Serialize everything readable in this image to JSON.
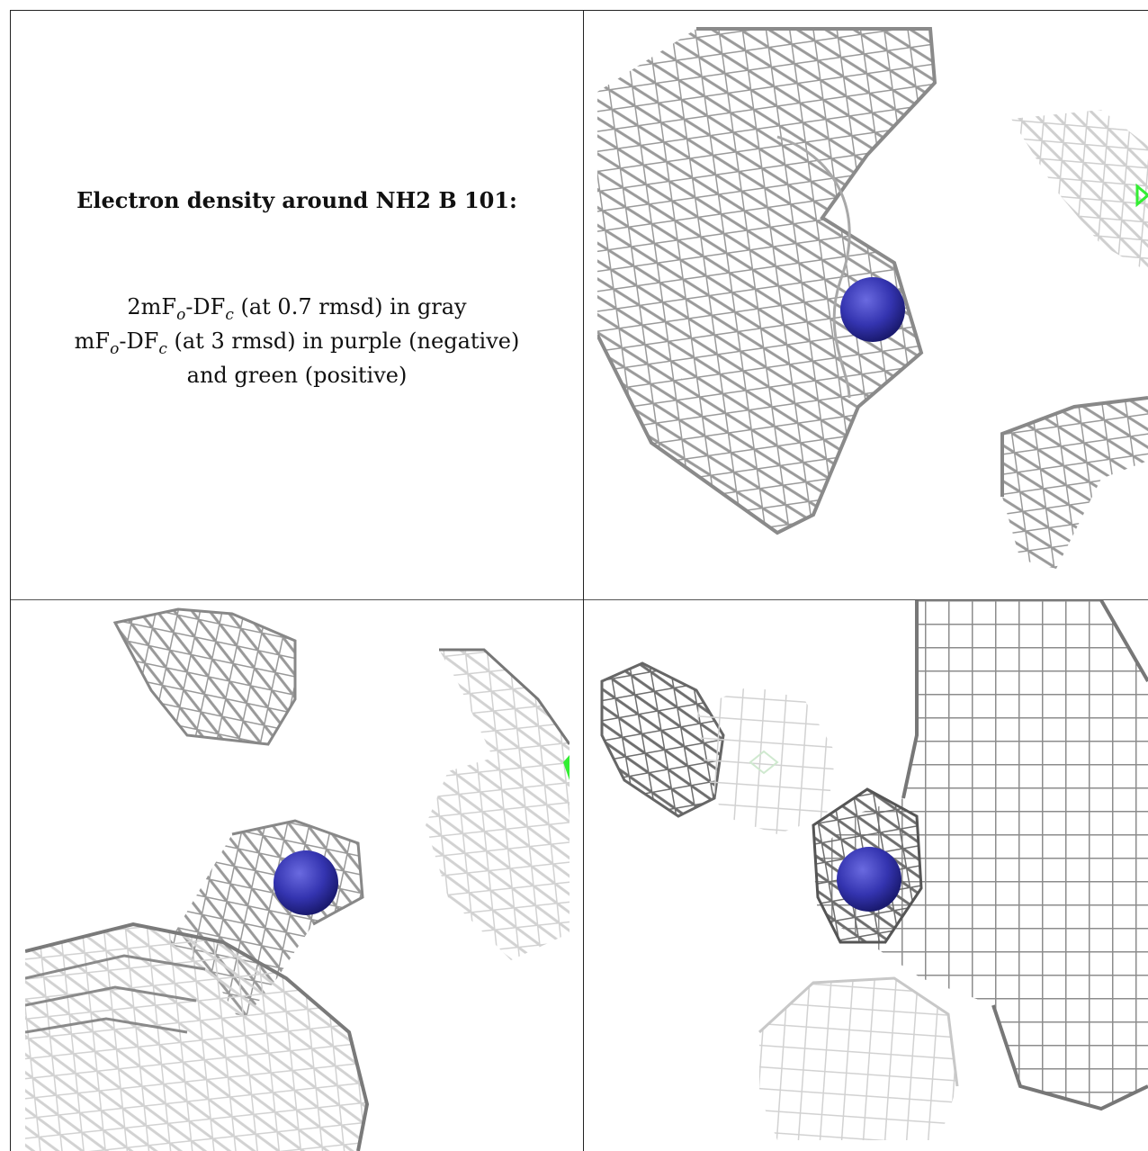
{
  "caption": {
    "title": "Electron density around NH2 B 101:",
    "line1": {
      "pre": "2mF",
      "sub1": "o",
      "mid": "-DF",
      "sub2": "c",
      "post": " (at 0.7 rmsd) in gray"
    },
    "line2": {
      "pre": "mF",
      "sub1": "o",
      "mid": "-DF",
      "sub2": "c",
      "post": " (at 3 rmsd) in purple (negative)"
    },
    "line3": "and green (positive)"
  },
  "colors": {
    "mesh_dark": "#8a8a8a",
    "mesh_light": "#d6d6d6",
    "atom": "#3a3ab8",
    "positive_density": "#33ee33",
    "border": "#222222"
  },
  "panels": [
    {
      "id": "view-1",
      "atom": "nitrogen",
      "has_positive_density": true
    },
    {
      "id": "view-2",
      "atom": "nitrogen",
      "has_positive_density": true
    },
    {
      "id": "view-3",
      "atom": "nitrogen",
      "has_positive_density": true
    }
  ]
}
